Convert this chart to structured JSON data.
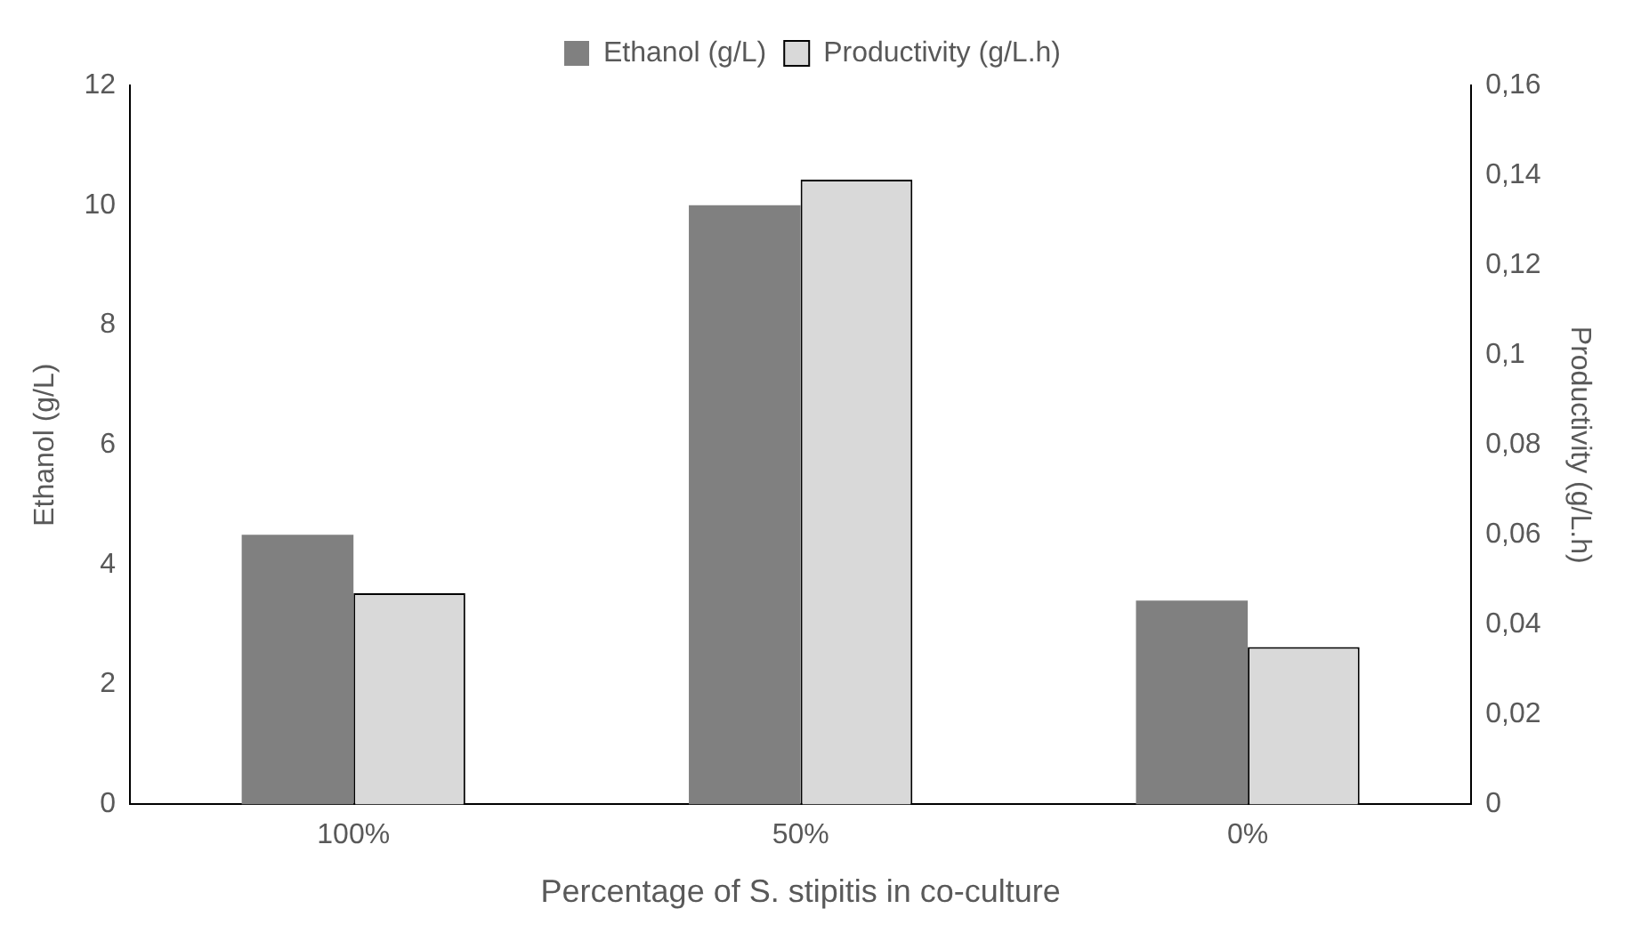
{
  "chart_data": {
    "type": "bar",
    "xlabel": "Percentage of S. stipitis in co-culture",
    "ylabel": "Ethanol (g/L)",
    "y2label": "Productivity (g/L.h)",
    "categories": [
      "100%",
      "50%",
      "0%"
    ],
    "series": [
      {
        "name": "Ethanol (g/L)",
        "color": "#808080",
        "values": [
          4.5,
          10.0,
          3.4
        ]
      },
      {
        "name": "Productivity (g/L.h)",
        "color": "#d9d9d9",
        "values": [
          0.047,
          0.139,
          0.035
        ],
        "axis": "y2"
      }
    ],
    "ylim": [
      0,
      12
    ],
    "yticks": [
      0,
      2,
      4,
      6,
      8,
      10,
      12
    ],
    "y2lim": [
      0,
      0.16
    ],
    "y2ticks": [
      0,
      {
        "value": 0.02,
        "label": "0,02"
      },
      {
        "value": 0.04,
        "label": "0,04"
      },
      {
        "value": 0.06,
        "label": "0,06"
      },
      {
        "value": 0.08,
        "label": "0,08"
      },
      {
        "value": 0.1,
        "label": "0,1"
      },
      {
        "value": 0.12,
        "label": "0,12"
      },
      {
        "value": 0.14,
        "label": "0,14"
      },
      {
        "value": 0.16,
        "label": "0,16"
      }
    ],
    "grid": false,
    "legend": "top"
  }
}
